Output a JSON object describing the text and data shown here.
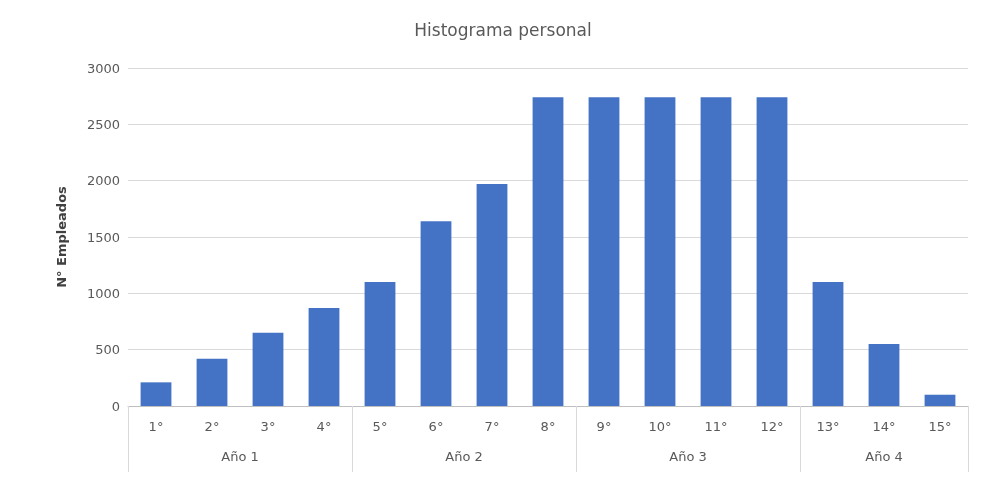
{
  "chart_data": {
    "type": "bar",
    "title": "Histograma personal",
    "ylabel": "N° Empleados",
    "categories": [
      "1°",
      "2°",
      "3°",
      "4°",
      "5°",
      "6°",
      "7°",
      "8°",
      "9°",
      "10°",
      "11°",
      "12°",
      "13°",
      "14°",
      "15°"
    ],
    "values": [
      210,
      420,
      650,
      870,
      1100,
      1640,
      1970,
      2740,
      2740,
      2740,
      2740,
      2740,
      1100,
      550,
      100
    ],
    "color": "#4472c4",
    "ylim": [
      0,
      3000
    ],
    "yticks": [
      0,
      500,
      1000,
      1500,
      2000,
      2500,
      3000
    ],
    "grid": "y",
    "annotations": [
      "Año 1",
      "Año 2",
      "Año 3",
      "Año 4"
    ]
  }
}
